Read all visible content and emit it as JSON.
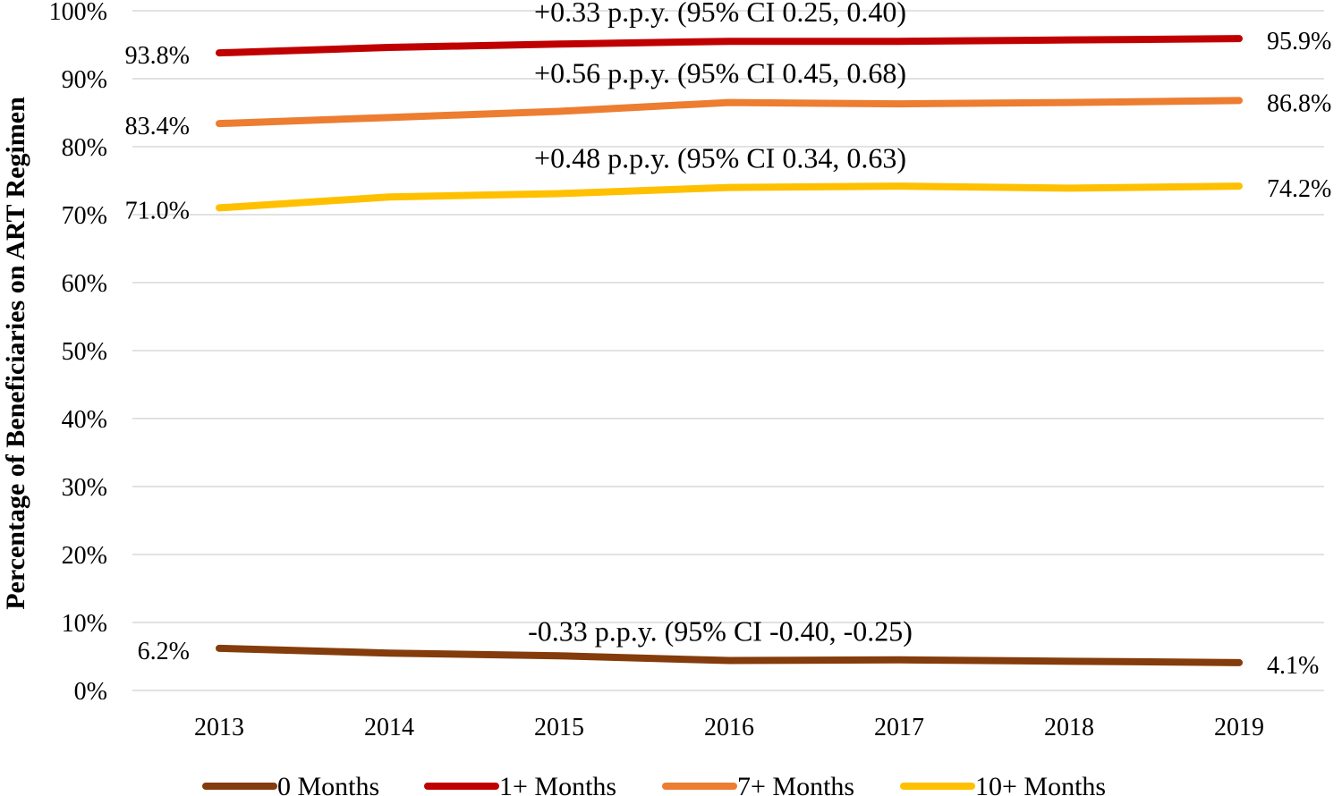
{
  "chart_data": {
    "type": "line",
    "ylabel": "Percentage of Beneficiaries on ART Regimen",
    "xlabel": "",
    "categories": [
      "2013",
      "2014",
      "2015",
      "2016",
      "2017",
      "2018",
      "2019"
    ],
    "ylim": [
      0,
      100
    ],
    "yticks": [
      0,
      10,
      20,
      30,
      40,
      50,
      60,
      70,
      80,
      90,
      100
    ],
    "ytick_labels": [
      "0%",
      "10%",
      "20%",
      "30%",
      "40%",
      "50%",
      "60%",
      "70%",
      "80%",
      "90%",
      "100%"
    ],
    "grid": true,
    "legend_position": "bottom",
    "series": [
      {
        "name": "0 Months",
        "color": "#843C0C",
        "values": [
          6.2,
          5.5,
          5.1,
          4.4,
          4.5,
          4.3,
          4.1
        ],
        "start_label": "6.2%",
        "end_label": "4.1%",
        "annotation": "-0.33 p.p.y. (95% CI -0.40, -0.25)"
      },
      {
        "name": "1+ Months",
        "color": "#C00000",
        "values": [
          93.8,
          94.6,
          95.1,
          95.5,
          95.5,
          95.7,
          95.9
        ],
        "start_label": "93.8%",
        "end_label": "95.9%",
        "annotation": "+0.33 p.p.y. (95% CI 0.25, 0.40)"
      },
      {
        "name": "7+ Months",
        "color": "#ED7D31",
        "values": [
          83.4,
          84.3,
          85.2,
          86.5,
          86.3,
          86.5,
          86.8
        ],
        "start_label": "83.4%",
        "end_label": "86.8%",
        "annotation": "+0.56 p.p.y. (95% CI 0.45, 0.68)"
      },
      {
        "name": "10+ Months",
        "color": "#FFC000",
        "values": [
          71.0,
          72.6,
          73.1,
          74.0,
          74.2,
          73.9,
          74.2
        ],
        "start_label": "71.0%",
        "end_label": "74.2%",
        "annotation": "+0.48 p.p.y. (95% CI 0.34, 0.63)"
      }
    ]
  }
}
